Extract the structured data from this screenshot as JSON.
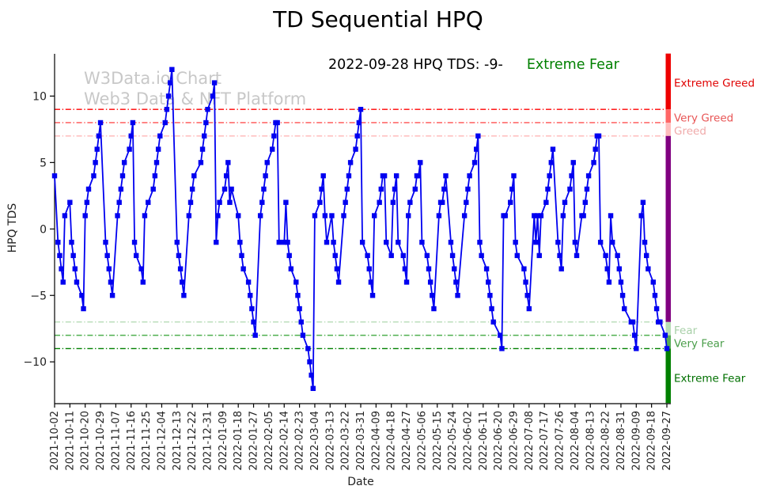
{
  "title": "TD Sequential HPQ",
  "annotation": {
    "date_text": "2022-09-28 HPQ TDS: -9-",
    "state_text": "Extreme Fear",
    "state_color": "#008000"
  },
  "watermark": {
    "line1": "W3Data.io Chart",
    "line2": "Web3 Data & NFT Platform"
  },
  "axes": {
    "xlabel": "Date",
    "ylabel": "HPQ TDS",
    "yticks": [
      {
        "v": 10,
        "label": "10"
      },
      {
        "v": 5,
        "label": "5"
      },
      {
        "v": 0,
        "label": "0"
      },
      {
        "v": -5,
        "label": "−5"
      },
      {
        "v": -10,
        "label": "−10"
      }
    ],
    "xtick_labels": [
      "2021-10-02",
      "2021-10-11",
      "2021-10-20",
      "2021-10-29",
      "2021-11-07",
      "2021-11-16",
      "2021-11-25",
      "2021-12-04",
      "2021-12-13",
      "2021-12-22",
      "2021-12-31",
      "2022-01-09",
      "2022-01-18",
      "2022-01-27",
      "2022-02-05",
      "2022-02-14",
      "2022-02-23",
      "2022-03-04",
      "2022-03-13",
      "2022-03-22",
      "2022-03-31",
      "2022-04-09",
      "2022-04-18",
      "2022-04-27",
      "2022-05-06",
      "2022-05-15",
      "2022-05-24",
      "2022-06-02",
      "2022-06-11",
      "2022-06-20",
      "2022-06-29",
      "2022-07-08",
      "2022-07-17",
      "2022-07-26",
      "2022-08-04",
      "2022-08-13",
      "2022-08-22",
      "2022-08-31",
      "2022-09-09",
      "2022-09-18",
      "2022-09-27"
    ]
  },
  "zones": {
    "lines": [
      {
        "value": 9,
        "label": "Extreme Greed",
        "line_color": "#ff0000",
        "label_color": "#e00000",
        "label_at": 11.0
      },
      {
        "value": 8,
        "label": "Very Greed",
        "line_color": "#ff5050",
        "label_color": "#e85555",
        "label_at": 8.4
      },
      {
        "value": 7,
        "label": "Greed",
        "line_color": "#ffb6b6",
        "label_color": "#f0aaaa",
        "label_at": 7.4
      },
      {
        "value": -7,
        "label": "Fear",
        "line_color": "#b6dcb6",
        "label_color": "#a8d0a8",
        "label_at": -7.6
      },
      {
        "value": -8,
        "label": "Very Fear",
        "line_color": "#4faf4f",
        "label_color": "#4a9e4a",
        "label_at": -8.6
      },
      {
        "value": -9,
        "label": "Extreme Fear",
        "line_color": "#008000",
        "label_color": "#007000",
        "label_at": -11.2
      }
    ],
    "bar_segments": [
      {
        "from": 13.2,
        "to": 9,
        "color": "#ee0000"
      },
      {
        "from": 9,
        "to": 8,
        "color": "#ff6666"
      },
      {
        "from": 8,
        "to": 7,
        "color": "#ffbdbd"
      },
      {
        "from": 7,
        "to": -7,
        "color": "#800080"
      },
      {
        "from": -7,
        "to": -8,
        "color": "#b6dcb6"
      },
      {
        "from": -8,
        "to": -9,
        "color": "#55ab55"
      },
      {
        "from": -9,
        "to": -13.1,
        "color": "#008000"
      }
    ]
  },
  "chart_data": {
    "type": "line",
    "title": "TD Sequential HPQ",
    "xlabel": "Date",
    "ylabel": "HPQ TDS",
    "x_start": "2021-10-02",
    "x_end": "2022-09-28",
    "ylim": [
      -13.1,
      13.2
    ],
    "grid": false,
    "legend": "none",
    "series_color": "#0000f0",
    "marker": "square",
    "points": [
      [
        "2021-10-02",
        4
      ],
      [
        "2021-10-04",
        -1
      ],
      [
        "2021-10-05",
        -2
      ],
      [
        "2021-10-06",
        -3
      ],
      [
        "2021-10-07",
        -4
      ],
      [
        "2021-10-08",
        1
      ],
      [
        "2021-10-11",
        2
      ],
      [
        "2021-10-12",
        -1
      ],
      [
        "2021-10-13",
        -2
      ],
      [
        "2021-10-14",
        -3
      ],
      [
        "2021-10-15",
        -4
      ],
      [
        "2021-10-18",
        -5
      ],
      [
        "2021-10-19",
        -6
      ],
      [
        "2021-10-20",
        1
      ],
      [
        "2021-10-21",
        2
      ],
      [
        "2021-10-22",
        3
      ],
      [
        "2021-10-25",
        4
      ],
      [
        "2021-10-26",
        5
      ],
      [
        "2021-10-27",
        6
      ],
      [
        "2021-10-28",
        7
      ],
      [
        "2021-10-29",
        8
      ],
      [
        "2021-11-01",
        -1
      ],
      [
        "2021-11-02",
        -2
      ],
      [
        "2021-11-03",
        -3
      ],
      [
        "2021-11-04",
        -4
      ],
      [
        "2021-11-05",
        -5
      ],
      [
        "2021-11-08",
        1
      ],
      [
        "2021-11-09",
        2
      ],
      [
        "2021-11-10",
        3
      ],
      [
        "2021-11-11",
        4
      ],
      [
        "2021-11-12",
        5
      ],
      [
        "2021-11-15",
        6
      ],
      [
        "2021-11-16",
        7
      ],
      [
        "2021-11-17",
        8
      ],
      [
        "2021-11-18",
        -1
      ],
      [
        "2021-11-19",
        -2
      ],
      [
        "2021-11-22",
        -3
      ],
      [
        "2021-11-23",
        -4
      ],
      [
        "2021-11-24",
        1
      ],
      [
        "2021-11-26",
        2
      ],
      [
        "2021-11-29",
        3
      ],
      [
        "2021-11-30",
        4
      ],
      [
        "2021-12-01",
        5
      ],
      [
        "2021-12-02",
        6
      ],
      [
        "2021-12-03",
        7
      ],
      [
        "2021-12-06",
        8
      ],
      [
        "2021-12-07",
        9
      ],
      [
        "2021-12-08",
        10
      ],
      [
        "2021-12-09",
        11
      ],
      [
        "2021-12-10",
        12
      ],
      [
        "2021-12-13",
        -1
      ],
      [
        "2021-12-14",
        -2
      ],
      [
        "2021-12-15",
        -3
      ],
      [
        "2021-12-16",
        -4
      ],
      [
        "2021-12-17",
        -5
      ],
      [
        "2021-12-20",
        1
      ],
      [
        "2021-12-21",
        2
      ],
      [
        "2021-12-22",
        3
      ],
      [
        "2021-12-23",
        4
      ],
      [
        "2021-12-27",
        5
      ],
      [
        "2021-12-28",
        6
      ],
      [
        "2021-12-29",
        7
      ],
      [
        "2021-12-30",
        8
      ],
      [
        "2021-12-31",
        9
      ],
      [
        "2022-01-03",
        10
      ],
      [
        "2022-01-04",
        11
      ],
      [
        "2022-01-05",
        -1
      ],
      [
        "2022-01-06",
        1
      ],
      [
        "2022-01-07",
        2
      ],
      [
        "2022-01-10",
        3
      ],
      [
        "2022-01-11",
        4
      ],
      [
        "2022-01-12",
        5
      ],
      [
        "2022-01-13",
        2
      ],
      [
        "2022-01-14",
        3
      ],
      [
        "2022-01-18",
        1
      ],
      [
        "2022-01-19",
        -1
      ],
      [
        "2022-01-20",
        -2
      ],
      [
        "2022-01-21",
        -3
      ],
      [
        "2022-01-24",
        -4
      ],
      [
        "2022-01-25",
        -5
      ],
      [
        "2022-01-26",
        -6
      ],
      [
        "2022-01-27",
        -7
      ],
      [
        "2022-01-28",
        -8
      ],
      [
        "2022-01-31",
        1
      ],
      [
        "2022-02-01",
        2
      ],
      [
        "2022-02-02",
        3
      ],
      [
        "2022-02-03",
        4
      ],
      [
        "2022-02-04",
        5
      ],
      [
        "2022-02-07",
        6
      ],
      [
        "2022-02-08",
        7
      ],
      [
        "2022-02-09",
        8
      ],
      [
        "2022-02-10",
        8
      ],
      [
        "2022-02-11",
        -1
      ],
      [
        "2022-02-14",
        -1
      ],
      [
        "2022-02-15",
        2
      ],
      [
        "2022-02-16",
        -1
      ],
      [
        "2022-02-17",
        -2
      ],
      [
        "2022-02-18",
        -3
      ],
      [
        "2022-02-21",
        -4
      ],
      [
        "2022-02-22",
        -5
      ],
      [
        "2022-02-23",
        -6
      ],
      [
        "2022-02-24",
        -7
      ],
      [
        "2022-02-25",
        -8
      ],
      [
        "2022-02-28",
        -9
      ],
      [
        "2022-03-01",
        -10
      ],
      [
        "2022-03-02",
        -11
      ],
      [
        "2022-03-03",
        -12
      ],
      [
        "2022-03-04",
        1
      ],
      [
        "2022-03-07",
        2
      ],
      [
        "2022-03-08",
        3
      ],
      [
        "2022-03-09",
        4
      ],
      [
        "2022-03-10",
        1
      ],
      [
        "2022-03-11",
        -1
      ],
      [
        "2022-03-14",
        1
      ],
      [
        "2022-03-15",
        -1
      ],
      [
        "2022-03-16",
        -2
      ],
      [
        "2022-03-17",
        -3
      ],
      [
        "2022-03-18",
        -4
      ],
      [
        "2022-03-21",
        1
      ],
      [
        "2022-03-22",
        2
      ],
      [
        "2022-03-23",
        3
      ],
      [
        "2022-03-24",
        4
      ],
      [
        "2022-03-25",
        5
      ],
      [
        "2022-03-28",
        6
      ],
      [
        "2022-03-29",
        7
      ],
      [
        "2022-03-30",
        8
      ],
      [
        "2022-03-31",
        9
      ],
      [
        "2022-04-01",
        -1
      ],
      [
        "2022-04-04",
        -2
      ],
      [
        "2022-04-05",
        -3
      ],
      [
        "2022-04-06",
        -4
      ],
      [
        "2022-04-07",
        -5
      ],
      [
        "2022-04-08",
        1
      ],
      [
        "2022-04-11",
        2
      ],
      [
        "2022-04-12",
        3
      ],
      [
        "2022-04-13",
        4
      ],
      [
        "2022-04-14",
        4
      ],
      [
        "2022-04-15",
        -1
      ],
      [
        "2022-04-18",
        -2
      ],
      [
        "2022-04-19",
        2
      ],
      [
        "2022-04-20",
        3
      ],
      [
        "2022-04-21",
        4
      ],
      [
        "2022-04-22",
        -1
      ],
      [
        "2022-04-25",
        -2
      ],
      [
        "2022-04-26",
        -3
      ],
      [
        "2022-04-27",
        -4
      ],
      [
        "2022-04-28",
        1
      ],
      [
        "2022-04-29",
        2
      ],
      [
        "2022-05-02",
        3
      ],
      [
        "2022-05-03",
        4
      ],
      [
        "2022-05-04",
        4
      ],
      [
        "2022-05-05",
        5
      ],
      [
        "2022-05-06",
        -1
      ],
      [
        "2022-05-09",
        -2
      ],
      [
        "2022-05-10",
        -3
      ],
      [
        "2022-05-11",
        -4
      ],
      [
        "2022-05-12",
        -5
      ],
      [
        "2022-05-13",
        -6
      ],
      [
        "2022-05-16",
        1
      ],
      [
        "2022-05-17",
        2
      ],
      [
        "2022-05-18",
        2
      ],
      [
        "2022-05-19",
        3
      ],
      [
        "2022-05-20",
        4
      ],
      [
        "2022-05-23",
        -1
      ],
      [
        "2022-05-24",
        -2
      ],
      [
        "2022-05-25",
        -3
      ],
      [
        "2022-05-26",
        -4
      ],
      [
        "2022-05-27",
        -5
      ],
      [
        "2022-05-31",
        1
      ],
      [
        "2022-06-01",
        2
      ],
      [
        "2022-06-02",
        3
      ],
      [
        "2022-06-03",
        4
      ],
      [
        "2022-06-06",
        5
      ],
      [
        "2022-06-07",
        6
      ],
      [
        "2022-06-08",
        7
      ],
      [
        "2022-06-09",
        -1
      ],
      [
        "2022-06-10",
        -2
      ],
      [
        "2022-06-13",
        -3
      ],
      [
        "2022-06-14",
        -4
      ],
      [
        "2022-06-15",
        -5
      ],
      [
        "2022-06-16",
        -6
      ],
      [
        "2022-06-17",
        -7
      ],
      [
        "2022-06-21",
        -8
      ],
      [
        "2022-06-22",
        -9
      ],
      [
        "2022-06-23",
        1
      ],
      [
        "2022-06-24",
        1
      ],
      [
        "2022-06-27",
        2
      ],
      [
        "2022-06-28",
        3
      ],
      [
        "2022-06-29",
        4
      ],
      [
        "2022-06-30",
        -1
      ],
      [
        "2022-07-01",
        -2
      ],
      [
        "2022-07-05",
        -3
      ],
      [
        "2022-07-06",
        -4
      ],
      [
        "2022-07-07",
        -5
      ],
      [
        "2022-07-08",
        -6
      ],
      [
        "2022-07-11",
        1
      ],
      [
        "2022-07-12",
        -1
      ],
      [
        "2022-07-13",
        1
      ],
      [
        "2022-07-14",
        -2
      ],
      [
        "2022-07-15",
        1
      ],
      [
        "2022-07-18",
        2
      ],
      [
        "2022-07-19",
        3
      ],
      [
        "2022-07-20",
        4
      ],
      [
        "2022-07-21",
        5
      ],
      [
        "2022-07-22",
        6
      ],
      [
        "2022-07-25",
        -1
      ],
      [
        "2022-07-26",
        -2
      ],
      [
        "2022-07-27",
        -3
      ],
      [
        "2022-07-28",
        1
      ],
      [
        "2022-07-29",
        2
      ],
      [
        "2022-08-01",
        3
      ],
      [
        "2022-08-02",
        4
      ],
      [
        "2022-08-03",
        5
      ],
      [
        "2022-08-04",
        -1
      ],
      [
        "2022-08-05",
        -2
      ],
      [
        "2022-08-08",
        1
      ],
      [
        "2022-08-09",
        1
      ],
      [
        "2022-08-10",
        2
      ],
      [
        "2022-08-11",
        3
      ],
      [
        "2022-08-12",
        4
      ],
      [
        "2022-08-15",
        5
      ],
      [
        "2022-08-16",
        6
      ],
      [
        "2022-08-17",
        7
      ],
      [
        "2022-08-18",
        7
      ],
      [
        "2022-08-19",
        -1
      ],
      [
        "2022-08-22",
        -2
      ],
      [
        "2022-08-23",
        -3
      ],
      [
        "2022-08-24",
        -4
      ],
      [
        "2022-08-25",
        1
      ],
      [
        "2022-08-26",
        -1
      ],
      [
        "2022-08-29",
        -2
      ],
      [
        "2022-08-30",
        -3
      ],
      [
        "2022-08-31",
        -4
      ],
      [
        "2022-09-01",
        -5
      ],
      [
        "2022-09-02",
        -6
      ],
      [
        "2022-09-06",
        -7
      ],
      [
        "2022-09-07",
        -7
      ],
      [
        "2022-09-08",
        -8
      ],
      [
        "2022-09-09",
        -9
      ],
      [
        "2022-09-12",
        1
      ],
      [
        "2022-09-13",
        2
      ],
      [
        "2022-09-14",
        -1
      ],
      [
        "2022-09-15",
        -2
      ],
      [
        "2022-09-16",
        -3
      ],
      [
        "2022-09-19",
        -4
      ],
      [
        "2022-09-20",
        -5
      ],
      [
        "2022-09-21",
        -6
      ],
      [
        "2022-09-22",
        -7
      ],
      [
        "2022-09-23",
        -7
      ],
      [
        "2022-09-26",
        -8
      ],
      [
        "2022-09-27",
        -9
      ]
    ]
  }
}
